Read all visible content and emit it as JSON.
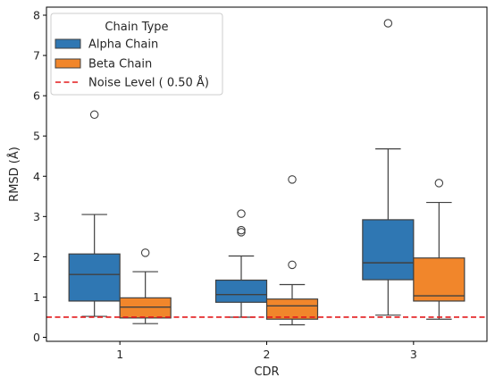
{
  "chart_data": {
    "type": "box",
    "xlabel": "CDR",
    "ylabel": "RMSD (Å)",
    "categories": [
      "1",
      "2",
      "3"
    ],
    "ylim": [
      -0.1,
      8.2
    ],
    "yticks": [
      0,
      1,
      2,
      3,
      4,
      5,
      6,
      7,
      8
    ],
    "legend": {
      "title": "Chain Type",
      "placement": "top-left",
      "noise_label": "Noise Level ( 0.50 Å)"
    },
    "noise_level": 0.5,
    "colors": {
      "alpha": "#2f77b3",
      "beta": "#f1862b",
      "noise": "#e41a1c",
      "edge": "#404040"
    },
    "series": [
      {
        "name": "Alpha Chain",
        "boxes": [
          {
            "category": "1",
            "whisker_low": 0.52,
            "q1": 0.9,
            "median": 1.56,
            "q3": 2.07,
            "whisker_high": 3.05,
            "outliers": [
              5.53
            ]
          },
          {
            "category": "2",
            "whisker_low": 0.5,
            "q1": 0.87,
            "median": 1.06,
            "q3": 1.42,
            "whisker_high": 2.02,
            "outliers": [
              2.61,
              2.66,
              3.07
            ]
          },
          {
            "category": "3",
            "whisker_low": 0.55,
            "q1": 1.43,
            "median": 1.85,
            "q3": 2.92,
            "whisker_high": 4.68,
            "outliers": [
              7.8
            ]
          }
        ]
      },
      {
        "name": "Beta Chain",
        "boxes": [
          {
            "category": "1",
            "whisker_low": 0.34,
            "q1": 0.48,
            "median": 0.75,
            "q3": 0.98,
            "whisker_high": 1.63,
            "outliers": [
              2.1
            ]
          },
          {
            "category": "2",
            "whisker_low": 0.31,
            "q1": 0.45,
            "median": 0.78,
            "q3": 0.95,
            "whisker_high": 1.31,
            "outliers": [
              1.8,
              3.92
            ]
          },
          {
            "category": "3",
            "whisker_low": 0.45,
            "q1": 0.9,
            "median": 1.03,
            "q3": 1.97,
            "whisker_high": 3.35,
            "outliers": [
              3.83
            ]
          }
        ]
      }
    ]
  }
}
